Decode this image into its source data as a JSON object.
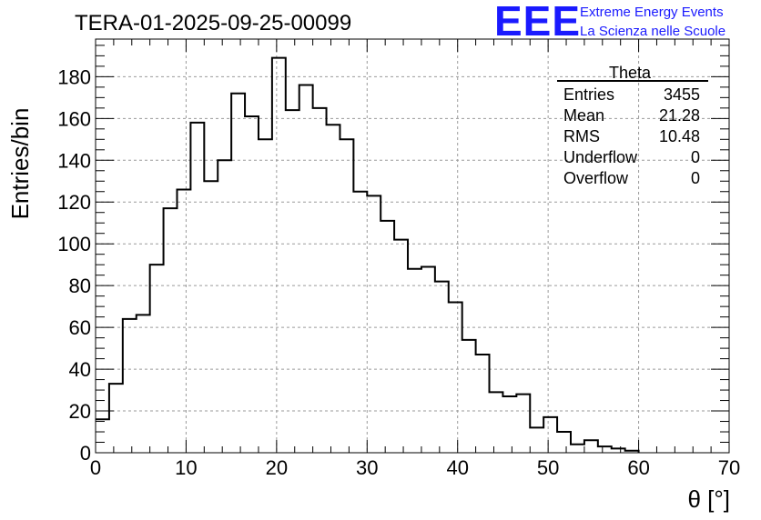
{
  "logo": {
    "mark": "EEE",
    "line1": "Extreme Energy Events",
    "line2": "La Scienza nelle Scuole",
    "color": "#1a1aff"
  },
  "chart_data": {
    "type": "histogram",
    "title": "TERA-01-2025-09-25-00099",
    "xlabel": "θ [°]",
    "ylabel": "Entries/bin",
    "xlim": [
      0,
      70
    ],
    "ylim": [
      0,
      198
    ],
    "bin_width": 1.5,
    "x_ticks": [
      0,
      10,
      20,
      30,
      40,
      50,
      60,
      70
    ],
    "y_ticks": [
      0,
      20,
      40,
      60,
      80,
      100,
      120,
      140,
      160,
      180
    ],
    "x_tick_labels": [
      "0",
      "10",
      "20",
      "30",
      "40",
      "50",
      "60",
      "70"
    ],
    "y_tick_labels": [
      "0",
      "20",
      "40",
      "60",
      "80",
      "100",
      "120",
      "140",
      "160",
      "180"
    ],
    "grid": true,
    "values": [
      16,
      33,
      64,
      66,
      90,
      117,
      126,
      158,
      130,
      140,
      172,
      161,
      150,
      189,
      164,
      176,
      165,
      157,
      150,
      125,
      123,
      111,
      102,
      88,
      89,
      82,
      72,
      54,
      47,
      29,
      27,
      28,
      12,
      17,
      10,
      4,
      6,
      3,
      2,
      1
    ],
    "stats": {
      "title": "Theta",
      "rows": [
        {
          "label": "Entries",
          "value": "3455"
        },
        {
          "label": "Mean",
          "value": "21.28"
        },
        {
          "label": "RMS",
          "value": "10.48"
        },
        {
          "label": "Underflow",
          "value": "0"
        },
        {
          "label": "Overflow",
          "value": "0"
        }
      ]
    }
  }
}
